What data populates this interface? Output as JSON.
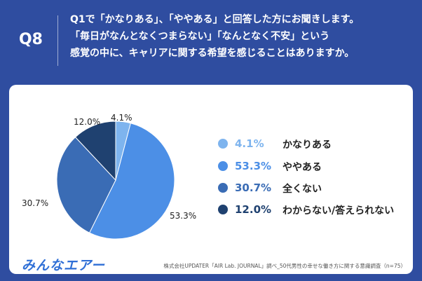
{
  "header": {
    "qnum": "Q8",
    "lines": [
      "Q1で「かなりある」、「ややある」と回答した方にお聞きします。",
      "「毎日がなんとなくつまらない」「なんとなく不安」という",
      "感覚の中に、キャリアに関する希望を感じることはありますか。"
    ]
  },
  "chart_data": {
    "type": "pie",
    "slices": [
      {
        "name": "かなりある",
        "value": 4.1,
        "label": "4.1%",
        "color": "#7eb4ee"
      },
      {
        "name": "ややある",
        "value": 53.3,
        "label": "53.3%",
        "color": "#4c8fe6"
      },
      {
        "name": "全くない",
        "value": 30.7,
        "label": "30.7%",
        "color": "#3a6cb5"
      },
      {
        "name": "わからない/答えられない",
        "value": 12.0,
        "label": "12.0%",
        "color": "#1f4170"
      }
    ],
    "start_angle_deg": 0,
    "direction": "clockwise",
    "legend_position": "right"
  },
  "footer": {
    "logo": "みんなエアー",
    "source": "株式会社UPDATER「AIR Lab. JOURNAL」調べ_50代男性の幸せな働き方に関する意識調査（n=75）"
  }
}
